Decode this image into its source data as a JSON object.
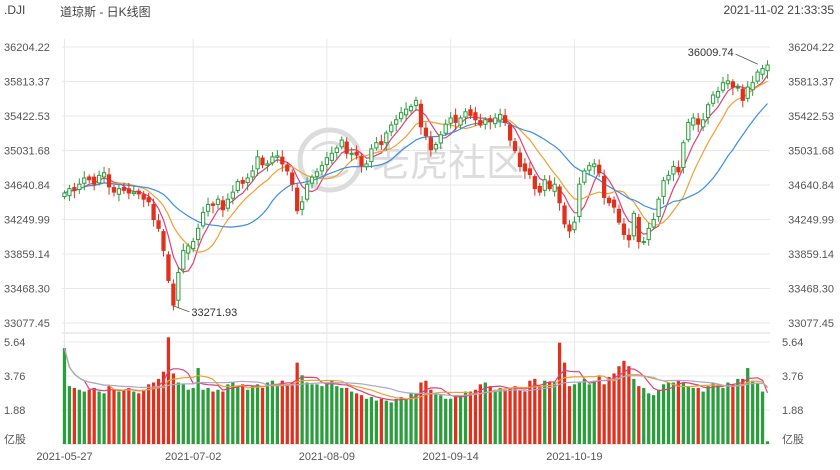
{
  "header": {
    "symbol": ".DJI",
    "title": "道琼斯 - 日K线图",
    "timestamp": "2021-11-02 21:33:35"
  },
  "colors": {
    "up": "#2a9d3c",
    "down": "#e0301e",
    "ma5": "#e0407a",
    "ma10": "#f0a030",
    "ma20": "#3a8ee6",
    "vol_ma": "#a9a9c9",
    "grid": "#e8e8e8"
  },
  "watermark": "老虎社区",
  "chart_data": {
    "type": "candlestick",
    "price_axis": {
      "ticks": [
        "36204.22",
        "35813.37",
        "35422.53",
        "35031.68",
        "34640.84",
        "34249.99",
        "33859.14",
        "33468.30",
        "33077.45"
      ],
      "min": 33077.45,
      "max": 36204.22
    },
    "volume_axis": {
      "ticks": [
        "5.64",
        "3.76",
        "1.88"
      ],
      "unit": "亿股",
      "max": 5.64
    },
    "x_labels": [
      "2021-05-27",
      "2021-07-02",
      "2021-08-09",
      "2021-09-14",
      "2021-10-19"
    ],
    "annotations": {
      "high": {
        "label": "36009.74",
        "value": 36009.74
      },
      "low": {
        "label": "33271.93",
        "value": 33271.93
      }
    },
    "closes": [
      34550,
      34600,
      34580,
      34650,
      34720,
      34700,
      34650,
      34750,
      34780,
      34620,
      34560,
      34600,
      34580,
      34550,
      34560,
      34540,
      34480,
      34450,
      34250,
      34150,
      33900,
      33560,
      33280,
      33650,
      33900,
      33950,
      34000,
      34150,
      34330,
      34420,
      34410,
      34480,
      34360,
      34480,
      34560,
      34680,
      34660,
      34720,
      34800,
      34960,
      34870,
      34880,
      34960,
      34970,
      34880,
      34800,
      34650,
      34350,
      34450,
      34650,
      34730,
      34790,
      34860,
      34950,
      35000,
      35060,
      35150,
      35000,
      35000,
      34980,
      34860,
      34880,
      35050,
      35120,
      35100,
      35230,
      35320,
      35380,
      35460,
      35500,
      35530,
      35600,
      35300,
      35200,
      35040,
      35100,
      35210,
      35330,
      35400,
      35350,
      35400,
      35470,
      35430,
      35380,
      35320,
      35380,
      35360,
      35400,
      35440,
      35350,
      35150,
      35030,
      34850,
      34800,
      34760,
      34600,
      34560,
      34700,
      34600,
      34650,
      34440,
      34200,
      34120,
      34220,
      34650,
      34800,
      34860,
      34880,
      34780,
      34500,
      34440,
      34390,
      34220,
      34080,
      34020,
      34320,
      34000,
      34000,
      34150,
      34250,
      34480,
      34690,
      34750,
      34850,
      34790,
      35120,
      35350,
      35400,
      35330,
      35380,
      35550,
      35660,
      35700,
      35800,
      35820,
      35750,
      35750,
      35600,
      35750,
      35800,
      35920,
      35960,
      36000
    ],
    "volumes": [
      5.3,
      3.2,
      3.1,
      3.0,
      2.9,
      3.0,
      3.1,
      2.9,
      2.8,
      3.2,
      3.0,
      2.9,
      3.0,
      3.1,
      2.9,
      2.8,
      3.0,
      3.3,
      3.4,
      3.6,
      4.0,
      5.9,
      3.9,
      3.4,
      3.3,
      3.0,
      3.1,
      4.2,
      3.0,
      3.1,
      2.9,
      3.0,
      2.9,
      3.3,
      3.4,
      3.2,
      3.3,
      3.0,
      3.2,
      3.3,
      3.1,
      3.4,
      3.5,
      3.2,
      3.5,
      3.3,
      3.4,
      4.5,
      3.8,
      3.4,
      3.3,
      3.3,
      3.2,
      3.4,
      3.5,
      3.2,
      3.1,
      3.1,
      2.9,
      2.8,
      2.7,
      2.5,
      2.6,
      2.4,
      2.5,
      2.4,
      2.3,
      2.5,
      2.6,
      2.5,
      2.8,
      2.8,
      3.4,
      3.5,
      3.0,
      2.8,
      2.7,
      2.5,
      2.5,
      2.6,
      2.7,
      2.9,
      2.9,
      3.0,
      3.3,
      3.4,
      3.2,
      3.0,
      3.1,
      3.0,
      3.1,
      3.2,
      3.0,
      2.9,
      3.5,
      3.6,
      3.2,
      3.5,
      3.4,
      3.4,
      5.6,
      4.5,
      3.2,
      3.3,
      3.4,
      3.6,
      3.3,
      3.5,
      3.8,
      3.3,
      3.7,
      3.9,
      4.3,
      4.6,
      4.3,
      3.6,
      3.2,
      3.1,
      2.8,
      2.7,
      3.0,
      3.3,
      3.4,
      3.4,
      3.5,
      3.4,
      3.2,
      3.1,
      3.1,
      2.9,
      3.2,
      3.4,
      3.3,
      3.1,
      3.4,
      3.3,
      3.6,
      3.6,
      4.2,
      3.5,
      3.4,
      2.9,
      0.15
    ]
  }
}
